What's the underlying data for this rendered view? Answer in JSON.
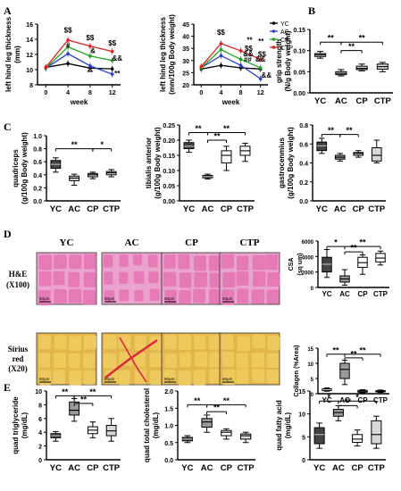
{
  "colors": {
    "YC": "#000000",
    "AC": "#2a3fd6",
    "CP": "#1fa51f",
    "CTP": "#e02020",
    "box_dark": "#444444",
    "box_mid": "#9a9a9a",
    "box_light": "#d8d8d8",
    "box_white": "#ffffff",
    "he_bg": "#e9a3cc",
    "he_fiber": "#e676b4",
    "sirius_bg": "#e2b64c",
    "sirius_fiber": "#f0cb60",
    "sirius_red": "#d9273f"
  },
  "panel_labels": [
    "A",
    "B",
    "C",
    "D",
    "E"
  ],
  "groups": [
    "YC",
    "AC",
    "CP",
    "CTP"
  ],
  "histology": {
    "columns": [
      "YC",
      "AC",
      "CP",
      "CTP"
    ],
    "rows": [
      {
        "label_line1": "H&E",
        "label_line2": "(X100)",
        "scale": "50μm",
        "stain": "he"
      },
      {
        "label_line1": "Sirius",
        "label_line2": "red",
        "label_line3": "(X20)",
        "scale": "60μm",
        "stain": "sirius"
      }
    ]
  },
  "chart_data": [
    {
      "id": "A1",
      "type": "line",
      "ylabel_line1": "left hind leg thickness",
      "ylabel_line2": "(mm)",
      "xlabel": "week",
      "x": [
        0,
        4,
        8,
        12
      ],
      "xticks": [
        "0",
        "4",
        "8",
        "12"
      ],
      "ylim": [
        8,
        16
      ],
      "yticks": [
        8,
        10,
        12,
        14,
        16
      ],
      "series": [
        {
          "name": "YC",
          "values": [
            10.3,
            10.8,
            10.2,
            10.1
          ]
        },
        {
          "name": "AC",
          "values": [
            10.2,
            12.1,
            10.5,
            9.4
          ]
        },
        {
          "name": "CP",
          "values": [
            10.2,
            13.0,
            11.8,
            11.2
          ]
        },
        {
          "name": "CTP",
          "values": [
            10.3,
            13.9,
            13.1,
            12.4
          ]
        }
      ],
      "annotations": [
        {
          "x": 4,
          "y": 14.9,
          "text": "$$"
        },
        {
          "x": 4,
          "y": 12.9,
          "text": "#"
        },
        {
          "x": 8,
          "y": 13.9,
          "text": "$$"
        },
        {
          "x": 8.5,
          "y": 12.2,
          "text": "&"
        },
        {
          "x": 8,
          "y": 9.3,
          "text": "**"
        },
        {
          "x": 12,
          "y": 13.2,
          "text": "$$"
        },
        {
          "x": 12.9,
          "y": 11.2,
          "text": "&&"
        },
        {
          "x": 12.9,
          "y": 9.2,
          "text": "**"
        }
      ]
    },
    {
      "id": "A2",
      "type": "line",
      "ylabel_line1": "left hind leg thickness",
      "ylabel_line2": "(mm/100g Body weight)",
      "xlabel": "week",
      "x": [
        0,
        4,
        8,
        12
      ],
      "xticks": [
        "0",
        "4",
        "8",
        "12"
      ],
      "ylim": [
        20,
        45
      ],
      "yticks": [
        20,
        25,
        30,
        35,
        40,
        45
      ],
      "legend": [
        "YC",
        "AC",
        "CP",
        "CTP"
      ],
      "series": [
        {
          "name": "YC",
          "values": [
            26.5,
            28.0,
            27.0,
            26.5
          ]
        },
        {
          "name": "AC",
          "values": [
            27.0,
            32.0,
            28.0,
            22.5
          ]
        },
        {
          "name": "CP",
          "values": [
            27.0,
            34.5,
            30.5,
            27.0
          ]
        },
        {
          "name": "CTP",
          "values": [
            27.5,
            37.0,
            34.0,
            30.5
          ]
        }
      ],
      "annotations": [
        {
          "x": 4,
          "y": 40.5,
          "text": "$$"
        },
        {
          "x": 9.8,
          "y": 37.5,
          "text": "**"
        },
        {
          "x": 9.6,
          "y": 34.0,
          "text": "$$"
        },
        {
          "x": 9.5,
          "y": 31.8,
          "text": "&&"
        },
        {
          "x": 9.4,
          "y": 29.4,
          "text": "##"
        },
        {
          "x": 12.1,
          "y": 37.0,
          "text": "**"
        },
        {
          "x": 12.3,
          "y": 31.5,
          "text": "$$"
        },
        {
          "x": 12.0,
          "y": 29.5,
          "text": "&&"
        },
        {
          "x": 13.2,
          "y": 23.0,
          "text": "&&"
        }
      ]
    },
    {
      "id": "B",
      "type": "box",
      "ylabel_line1": "grip strength",
      "ylabel_line2": "(N/g Body weight)",
      "categories": [
        "YC",
        "AC",
        "CP",
        "CTP"
      ],
      "ylim": [
        0.0,
        0.15
      ],
      "yticks": [
        "0.00",
        "0.05",
        "0.10",
        "0.15"
      ],
      "boxes": [
        {
          "min": 0.082,
          "q1": 0.086,
          "median": 0.09,
          "q3": 0.093,
          "max": 0.098
        },
        {
          "min": 0.04,
          "q1": 0.043,
          "median": 0.046,
          "q3": 0.05,
          "max": 0.055
        },
        {
          "min": 0.052,
          "q1": 0.055,
          "median": 0.058,
          "q3": 0.063,
          "max": 0.068
        },
        {
          "min": 0.05,
          "q1": 0.056,
          "median": 0.062,
          "q3": 0.068,
          "max": 0.072
        }
      ],
      "sig": [
        {
          "from": 0,
          "to": 1,
          "y": 0.12,
          "text": "**"
        },
        {
          "from": 1,
          "to": 3,
          "y": 0.12,
          "text": "**"
        },
        {
          "from": 1,
          "to": 2,
          "y": 0.1,
          "text": "**"
        }
      ]
    },
    {
      "id": "C1",
      "type": "box",
      "ylabel_line1": "quadriceps",
      "ylabel_line2": "(g/100g Body weight)",
      "categories": [
        "YC",
        "AC",
        "CP",
        "CTP"
      ],
      "ylim": [
        0.0,
        1.0
      ],
      "yticks": [
        "0.0",
        "0.2",
        "0.4",
        "0.6",
        "0.8",
        "1.0"
      ],
      "boxes": [
        {
          "min": 0.44,
          "q1": 0.5,
          "median": 0.56,
          "q3": 0.62,
          "max": 0.66
        },
        {
          "min": 0.24,
          "q1": 0.31,
          "median": 0.35,
          "q3": 0.38,
          "max": 0.41
        },
        {
          "min": 0.34,
          "q1": 0.37,
          "median": 0.4,
          "q3": 0.42,
          "max": 0.44
        },
        {
          "min": 0.37,
          "q1": 0.4,
          "median": 0.43,
          "q3": 0.45,
          "max": 0.48
        }
      ],
      "sig": [
        {
          "from": 0,
          "to": 2,
          "y": 0.8,
          "text": "**"
        },
        {
          "from": 2,
          "to": 3,
          "y": 0.8,
          "text": "*"
        }
      ]
    },
    {
      "id": "C2",
      "type": "box",
      "ylabel_line1": "tibialis anterior",
      "ylabel_line2": "(g/100g Body weight)",
      "categories": [
        "YC",
        "AC",
        "CP",
        "CTP"
      ],
      "ylim": [
        0.0,
        0.25
      ],
      "yticks": [
        "0.00",
        "0.05",
        "0.10",
        "0.15",
        "0.20",
        "0.25"
      ],
      "boxes": [
        {
          "min": 0.16,
          "q1": 0.172,
          "median": 0.18,
          "q3": 0.192,
          "max": 0.2
        },
        {
          "min": 0.072,
          "q1": 0.076,
          "median": 0.08,
          "q3": 0.084,
          "max": 0.088
        },
        {
          "min": 0.1,
          "q1": 0.125,
          "median": 0.15,
          "q3": 0.165,
          "max": 0.18
        },
        {
          "min": 0.13,
          "q1": 0.15,
          "median": 0.165,
          "q3": 0.18,
          "max": 0.19
        }
      ],
      "sig": [
        {
          "from": 0,
          "to": 1,
          "y": 0.225,
          "text": "**"
        },
        {
          "from": 1,
          "to": 3,
          "y": 0.225,
          "text": "**"
        },
        {
          "from": 1,
          "to": 2,
          "y": 0.2,
          "text": "**"
        }
      ]
    },
    {
      "id": "C3",
      "type": "box",
      "ylabel_line1": "gastrocenmius",
      "ylabel_line2": "(g/100g Body weight)",
      "categories": [
        "YC",
        "AC",
        "CP",
        "CTP"
      ],
      "ylim": [
        0.0,
        0.8
      ],
      "yticks": [
        "0.0",
        "0.2",
        "0.4",
        "0.6",
        "0.8"
      ],
      "boxes": [
        {
          "min": 0.5,
          "q1": 0.53,
          "median": 0.58,
          "q3": 0.62,
          "max": 0.66
        },
        {
          "min": 0.42,
          "q1": 0.44,
          "median": 0.46,
          "q3": 0.48,
          "max": 0.5
        },
        {
          "min": 0.46,
          "q1": 0.48,
          "median": 0.5,
          "q3": 0.51,
          "max": 0.53
        },
        {
          "min": 0.4,
          "q1": 0.42,
          "median": 0.48,
          "q3": 0.56,
          "max": 0.64
        }
      ],
      "sig": [
        {
          "from": 0,
          "to": 1,
          "y": 0.7,
          "text": "**"
        },
        {
          "from": 1,
          "to": 2,
          "y": 0.7,
          "text": "**"
        }
      ]
    },
    {
      "id": "D1",
      "type": "box",
      "ylabel_line1": "CSA",
      "ylabel_line2": "(sq um)",
      "categories": [
        "YC",
        "AC",
        "CP",
        "CTP"
      ],
      "ylim": [
        0,
        6000
      ],
      "yticks": [
        "0",
        "2000",
        "4000",
        "6000"
      ],
      "boxes": [
        {
          "min": 1300,
          "q1": 2000,
          "median": 3000,
          "q3": 3900,
          "max": 4900
        },
        {
          "min": 300,
          "q1": 700,
          "median": 1100,
          "q3": 1500,
          "max": 2300
        },
        {
          "min": 1700,
          "q1": 2600,
          "median": 3200,
          "q3": 3900,
          "max": 4200
        },
        {
          "min": 2900,
          "q1": 3300,
          "median": 3800,
          "q3": 4400,
          "max": 4700
        }
      ],
      "sig": [
        {
          "from": 0,
          "to": 1,
          "y": 5300,
          "text": "*"
        },
        {
          "from": 1,
          "to": 3,
          "y": 5300,
          "text": "**"
        },
        {
          "from": 1,
          "to": 2,
          "y": 4600,
          "text": "**"
        }
      ]
    },
    {
      "id": "D2",
      "type": "box",
      "ylabel_line1": "Collagen (%Area)",
      "ylabel_line2": "",
      "categories": [
        "YC",
        "AC",
        "CP",
        "CTP"
      ],
      "ylim": [
        0,
        15
      ],
      "yticks": [
        "0",
        "5",
        "10",
        "15"
      ],
      "boxes": [
        {
          "min": 0.8,
          "q1": 1.0,
          "median": 1.3,
          "q3": 1.6,
          "max": 1.9
        },
        {
          "min": 3.0,
          "q1": 5.0,
          "median": 8.0,
          "q3": 10.0,
          "max": 11.0
        },
        {
          "min": 0.3,
          "q1": 0.5,
          "median": 0.8,
          "q3": 1.1,
          "max": 1.3
        },
        {
          "min": 0.4,
          "q1": 0.6,
          "median": 0.8,
          "q3": 1.0,
          "max": 1.2
        }
      ],
      "sig": [
        {
          "from": 0,
          "to": 1,
          "y": 13.0,
          "text": "**"
        },
        {
          "from": 1,
          "to": 3,
          "y": 13.0,
          "text": "**"
        },
        {
          "from": 1,
          "to": 2,
          "y": 11.8,
          "text": "**"
        }
      ]
    },
    {
      "id": "E1",
      "type": "box",
      "ylabel_line1": "quad triglyceride",
      "ylabel_line2": "(mg/dL)",
      "categories": [
        "YC",
        "AC",
        "CP",
        "CTP"
      ],
      "ylim": [
        0,
        10
      ],
      "yticks": [
        "0",
        "2",
        "4",
        "6",
        "8",
        "10"
      ],
      "boxes": [
        {
          "min": 2.7,
          "q1": 3.2,
          "median": 3.5,
          "q3": 3.8,
          "max": 4.1
        },
        {
          "min": 5.6,
          "q1": 6.5,
          "median": 7.2,
          "q3": 8.4,
          "max": 8.9
        },
        {
          "min": 3.2,
          "q1": 3.8,
          "median": 4.3,
          "q3": 4.8,
          "max": 5.5
        },
        {
          "min": 2.7,
          "q1": 3.5,
          "median": 4.2,
          "q3": 5.0,
          "max": 6.0
        }
      ],
      "sig": [
        {
          "from": 0,
          "to": 1,
          "y": 9.3,
          "text": "**"
        },
        {
          "from": 1,
          "to": 3,
          "y": 9.3,
          "text": "**"
        },
        {
          "from": 1,
          "to": 2,
          "y": 8.2,
          "text": "**"
        }
      ]
    },
    {
      "id": "E2",
      "type": "box",
      "ylabel_line1": "quad total cholesterol",
      "ylabel_line2": "(mg/dL)",
      "categories": [
        "YC",
        "AC",
        "CP",
        "CTP"
      ],
      "ylim": [
        0.0,
        2.0
      ],
      "yticks": [
        "0.0",
        "0.5",
        "1.0",
        "1.5",
        "2.0"
      ],
      "boxes": [
        {
          "min": 0.5,
          "q1": 0.55,
          "median": 0.6,
          "q3": 0.65,
          "max": 0.7
        },
        {
          "min": 0.8,
          "q1": 0.95,
          "median": 1.1,
          "q3": 1.2,
          "max": 1.3
        },
        {
          "min": 0.6,
          "q1": 0.7,
          "median": 0.8,
          "q3": 0.85,
          "max": 0.9
        },
        {
          "min": 0.5,
          "q1": 0.6,
          "median": 0.7,
          "q3": 0.75,
          "max": 0.8
        }
      ],
      "sig": [
        {
          "from": 0,
          "to": 1,
          "y": 1.6,
          "text": "**"
        },
        {
          "from": 1,
          "to": 3,
          "y": 1.6,
          "text": "**"
        },
        {
          "from": 1,
          "to": 2,
          "y": 1.4,
          "text": "**"
        }
      ]
    },
    {
      "id": "E3",
      "type": "box",
      "ylabel_line1": "quad fatty acid",
      "ylabel_line2": "(mg/dL)",
      "categories": [
        "YC",
        "AC",
        "CP",
        "CTP"
      ],
      "ylim": [
        0,
        15
      ],
      "yticks": [
        "0",
        "5",
        "10",
        "15"
      ],
      "boxes": [
        {
          "min": 2.5,
          "q1": 3.5,
          "median": 5.5,
          "q3": 7.0,
          "max": 8.0
        },
        {
          "min": 8.5,
          "q1": 9.5,
          "median": 10.3,
          "q3": 11.0,
          "max": 11.8
        },
        {
          "min": 3.0,
          "q1": 3.8,
          "median": 4.5,
          "q3": 5.5,
          "max": 6.5
        },
        {
          "min": 2.5,
          "q1": 3.5,
          "median": 5.5,
          "q3": 8.5,
          "max": 9.5
        }
      ],
      "sig": [
        {
          "from": 0,
          "to": 1,
          "y": 12.8,
          "text": "*"
        },
        {
          "from": 1,
          "to": 3,
          "y": 12.8,
          "text": "*"
        },
        {
          "from": 1,
          "to": 2,
          "y": 11.8,
          "text": "**"
        }
      ]
    }
  ]
}
